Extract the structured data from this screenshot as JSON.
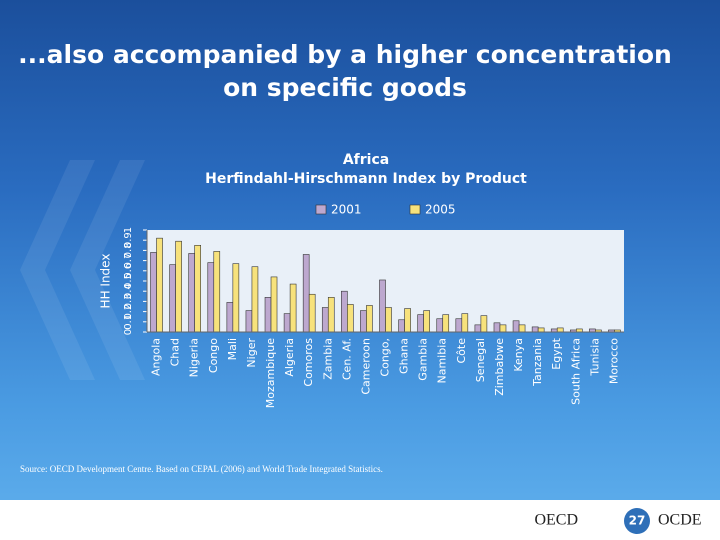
{
  "slide": {
    "title_lines": [
      "...also accompanied by a higher concentration",
      "on specific goods"
    ],
    "source": "Source: OECD Development Centre. Based on CEPAL (2006) and World Trade Integrated Statistics.",
    "footer_left": "OECD",
    "page_number": "27",
    "footer_right": "OCDE"
  },
  "chart_data": {
    "type": "bar",
    "title": "Africa",
    "subtitle": "Herfindahl-Hirschmann Index by Product",
    "y_label": "HH Index",
    "categories": [
      "Angola",
      "Chad",
      "Nigeria",
      "Congo",
      "Mali",
      "Niger",
      "Mozambique",
      "Algeria",
      "Comoros",
      "Zambia",
      "Cen. Af.",
      "Cameroon",
      "Congo,",
      "Ghana",
      "Gambia",
      "Namibia",
      "Côte",
      "Senegal",
      "Zimbabwe",
      "Kenya",
      "Tanzania",
      "Egypt",
      "South Africa",
      "Tunisia",
      "Morocco"
    ],
    "series": [
      {
        "name": "2001",
        "color": "#bda8cf",
        "values": [
          0.78,
          0.66,
          0.77,
          0.68,
          0.29,
          0.21,
          0.34,
          0.18,
          0.76,
          0.24,
          0.4,
          0.21,
          0.51,
          0.12,
          0.17,
          0.13,
          0.13,
          0.07,
          0.09,
          0.11,
          0.05,
          0.03,
          0.02,
          0.03,
          0.02
        ]
      },
      {
        "name": "2005",
        "color": "#f7e27c",
        "values": [
          0.92,
          0.89,
          0.85,
          0.79,
          0.67,
          0.64,
          0.54,
          0.47,
          0.37,
          0.34,
          0.27,
          0.26,
          0.24,
          0.23,
          0.21,
          0.17,
          0.18,
          0.16,
          0.07,
          0.07,
          0.04,
          0.04,
          0.03,
          0.02,
          0.02
        ]
      }
    ],
    "ylim": [
      0,
      1
    ],
    "yticks": [
      0,
      0.1,
      0.2,
      0.3,
      0.4,
      0.5,
      0.6,
      0.7,
      0.8,
      0.9,
      1
    ],
    "grid": false,
    "legend": "top"
  }
}
